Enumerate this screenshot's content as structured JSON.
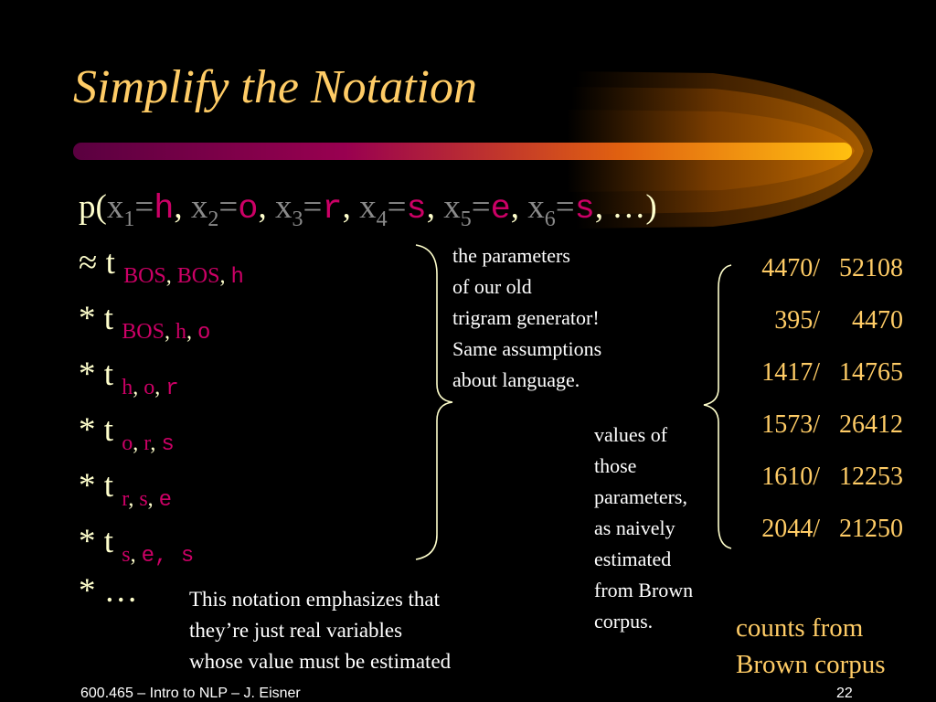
{
  "slide": {
    "title": "Simplify the Notation",
    "colors": {
      "title": "#ffcc66",
      "text": "#ffffcc",
      "variable": "#8a8a8a",
      "value": "#cc0066",
      "counts": "#ffcc66"
    },
    "formula": {
      "open": "p(",
      "terms": [
        {
          "var": "x",
          "idx": "1",
          "val": "h"
        },
        {
          "var": "x",
          "idx": "2",
          "val": "o"
        },
        {
          "var": "x",
          "idx": "3",
          "val": "r"
        },
        {
          "var": "x",
          "idx": "4",
          "val": "s"
        },
        {
          "var": "x",
          "idx": "5",
          "val": "e"
        },
        {
          "var": "x",
          "idx": "6",
          "val": "s"
        }
      ],
      "close": ", …)"
    },
    "factors": [
      {
        "op": "≈",
        "t": "t",
        "ctx": [
          "BOS",
          "BOS"
        ],
        "last": "h"
      },
      {
        "op": "*",
        "t": "t",
        "ctx": [
          "BOS",
          "h"
        ],
        "last": "o"
      },
      {
        "op": "*",
        "t": "t",
        "ctx": [
          "h",
          "o"
        ],
        "last": "r"
      },
      {
        "op": "*",
        "t": "t",
        "ctx": [
          "o",
          "r"
        ],
        "last": "s"
      },
      {
        "op": "*",
        "t": "t",
        "ctx": [
          "r",
          "s"
        ],
        "last": "e"
      },
      {
        "op": "*",
        "t": "t",
        "ctx": [
          "s"
        ],
        "last": "e, s"
      }
    ],
    "ellipsis": "* …",
    "note_parameters": [
      "the parameters",
      "of our old",
      "trigram generator!",
      "Same assumptions",
      "about language."
    ],
    "note_values": [
      "values of",
      "those",
      "parameters,",
      "as naively",
      "estimated",
      "from Brown",
      "corpus."
    ],
    "note_notation": [
      "This notation emphasizes that",
      "they’re just real variables",
      "whose value must be estimated"
    ],
    "counts": [
      {
        "num": "4470/",
        "den": "52108"
      },
      {
        "num": "395/",
        "den": "4470"
      },
      {
        "num": "1417/",
        "den": "14765"
      },
      {
        "num": "1573/",
        "den": "26412"
      },
      {
        "num": "1610/",
        "den": "12253"
      },
      {
        "num": "2044/",
        "den": "21250"
      }
    ],
    "counts_label": "counts from Brown corpus",
    "footer": "600.465 – Intro to NLP – J. Eisner",
    "page_number": "22"
  }
}
